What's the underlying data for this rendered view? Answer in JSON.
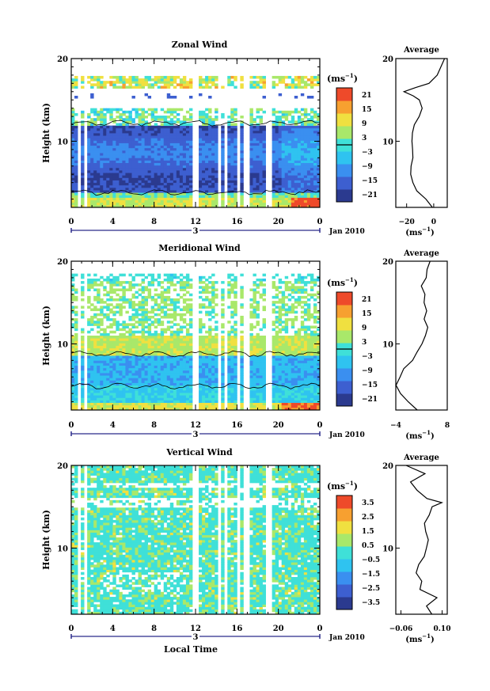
{
  "chart_data": [
    {
      "type": "heatmap",
      "title": "Zonal Wind",
      "ylabel": "Height (km)",
      "yticks": [
        "10",
        "20"
      ],
      "xticks": [
        "0",
        "4",
        "8",
        "12",
        "16",
        "20",
        "0"
      ],
      "date_label": "3",
      "month_label": "Jan 2010",
      "ylim": [
        2,
        20
      ],
      "xlim": [
        0,
        24
      ],
      "colorbar": {
        "unit_label": "(ms",
        "unit_exp": "−1",
        "ticks": [
          "21",
          "15",
          "9",
          "3",
          "−3",
          "−9",
          "−15",
          "−21"
        ],
        "range": [
          -24,
          24
        ],
        "zero_contour": true
      },
      "average": {
        "title": "Average",
        "xticks": [
          "−20",
          "0"
        ],
        "xlabel": "(ms",
        "xlabel_exp": "−1",
        "yticks": [
          "10",
          "20"
        ],
        "xlim": [
          -28,
          10
        ],
        "profile_km": [
          2,
          3,
          4,
          5,
          6,
          7,
          8,
          9,
          10,
          11,
          12,
          13,
          14,
          15,
          15.5,
          16,
          16.5,
          17,
          18,
          19,
          20
        ],
        "profile_val": [
          -1,
          -6,
          -12,
          -16,
          -17,
          -17,
          -16,
          -16,
          -16,
          -15,
          -14,
          -10,
          -8,
          -10,
          -16,
          -22,
          -14,
          -3,
          3,
          6,
          8
        ]
      }
    },
    {
      "type": "heatmap",
      "title": "Meridional Wind",
      "ylabel": "Height (km)",
      "yticks": [
        "10",
        "20"
      ],
      "xticks": [
        "0",
        "4",
        "8",
        "12",
        "16",
        "20",
        "0"
      ],
      "date_label": "3",
      "month_label": "Jan 2010",
      "ylim": [
        2,
        20
      ],
      "xlim": [
        0,
        24
      ],
      "colorbar": {
        "unit_label": "(ms",
        "unit_exp": "−1",
        "ticks": [
          "21",
          "15",
          "9",
          "3",
          "−3",
          "−9",
          "−15",
          "−21"
        ],
        "range": [
          -24,
          24
        ],
        "zero_contour": true
      },
      "average": {
        "title": "Average",
        "xticks": [
          "−4",
          "8"
        ],
        "xlabel": "(ms",
        "xlabel_exp": "−1",
        "yticks": [
          "10",
          "20"
        ],
        "xlim": [
          -4,
          8
        ],
        "profile_km": [
          2,
          3,
          4,
          5,
          6,
          7,
          8,
          9,
          10,
          11,
          12,
          13,
          14,
          15,
          16,
          17,
          18,
          19,
          20
        ],
        "profile_val": [
          1,
          -1,
          -3,
          -4,
          -3,
          -2,
          0,
          1,
          2,
          3,
          3.5,
          2.5,
          3,
          2.5,
          3,
          2,
          3,
          3.5,
          4
        ]
      }
    },
    {
      "type": "heatmap",
      "title": "Vertical Wind",
      "ylabel": "Height (km)",
      "xlabel": "Local Time",
      "yticks": [
        "10",
        "20"
      ],
      "xticks": [
        "0",
        "4",
        "8",
        "12",
        "16",
        "20",
        "0"
      ],
      "date_label": "3",
      "month_label": "Jan 2010",
      "ylim": [
        2,
        20
      ],
      "xlim": [
        0,
        24
      ],
      "colorbar": {
        "unit_label": "(ms",
        "unit_exp": "−1",
        "ticks": [
          "3.5",
          "2.5",
          "1.5",
          "0.5",
          "−0.5",
          "−1.5",
          "−2.5",
          "−3.5"
        ],
        "range": [
          -4,
          4
        ],
        "zero_contour": false
      },
      "average": {
        "title": "Average",
        "xticks": [
          "−0.06",
          "0.10"
        ],
        "xlabel": "(ms",
        "xlabel_exp": "−1",
        "yticks": [
          "10",
          "20"
        ],
        "xlim": [
          -0.08,
          0.12
        ],
        "profile_km": [
          2,
          3,
          4,
          5,
          6,
          7,
          8,
          9,
          10,
          11,
          12,
          13,
          14,
          15,
          15.5,
          16,
          17,
          18,
          19,
          20
        ],
        "profile_val": [
          0.06,
          0.04,
          0.08,
          0.01,
          0.02,
          0.0,
          0.01,
          0.03,
          0.04,
          0.05,
          0.04,
          0.03,
          0.05,
          0.06,
          0.1,
          0.04,
          0.0,
          -0.02,
          0.03,
          -0.04
        ]
      }
    }
  ],
  "colors": {
    "scale": [
      "#2b3a8f",
      "#3d5fd0",
      "#3a8ff0",
      "#2fc3f0",
      "#3fe0d8",
      "#a9e86a",
      "#f0e040",
      "#f7a030",
      "#ee4a2a"
    ]
  }
}
